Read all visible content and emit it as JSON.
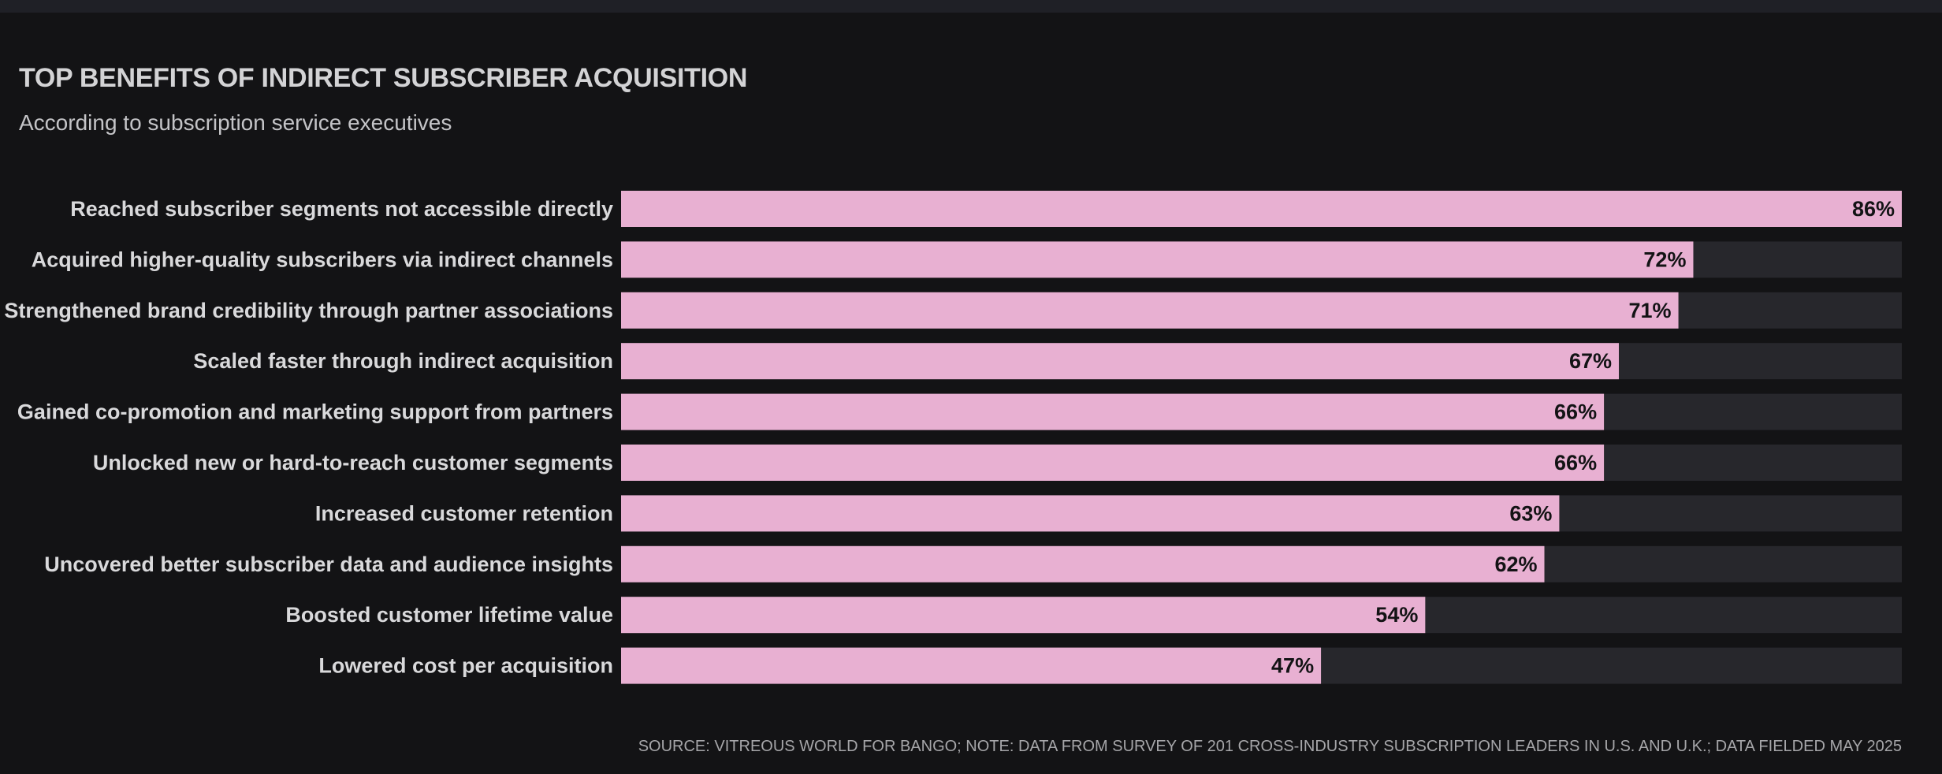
{
  "header": {
    "title": "TOP BENEFITS OF INDIRECT SUBSCRIBER ACQUISITION",
    "subtitle": "According to subscription service executives"
  },
  "footer": {
    "source": "SOURCE: VITREOUS WORLD FOR BANGO; NOTE: DATA FROM SURVEY OF 201 CROSS-INDUSTRY SUBSCRIPTION LEADERS IN U.S. AND U.K.; DATA FIELDED MAY 2025"
  },
  "colors": {
    "background": "#131315",
    "bar": "#e8b0d2",
    "track": "#27272c",
    "category_text": "#d9d9db",
    "value_text": "#131315"
  },
  "chart_data": {
    "type": "bar",
    "orientation": "horizontal",
    "title": "TOP BENEFITS OF INDIRECT SUBSCRIBER ACQUISITION",
    "subtitle": "According to subscription service executives",
    "xlim": [
      0,
      86
    ],
    "value_suffix": "%",
    "grid": false,
    "categories": [
      "Reached subscriber segments not accessible directly",
      "Acquired higher-quality subscribers via indirect channels",
      "Strengthened brand credibility through partner associations",
      "Scaled faster through indirect acquisition",
      "Gained co-promotion and marketing support from partners",
      "Unlocked new or hard-to-reach customer segments",
      "Increased customer retention",
      "Uncovered better subscriber data and audience insights",
      "Boosted customer lifetime value",
      "Lowered cost per acquisition"
    ],
    "values": [
      86,
      72,
      71,
      67,
      66,
      66,
      63,
      62,
      54,
      47
    ]
  }
}
